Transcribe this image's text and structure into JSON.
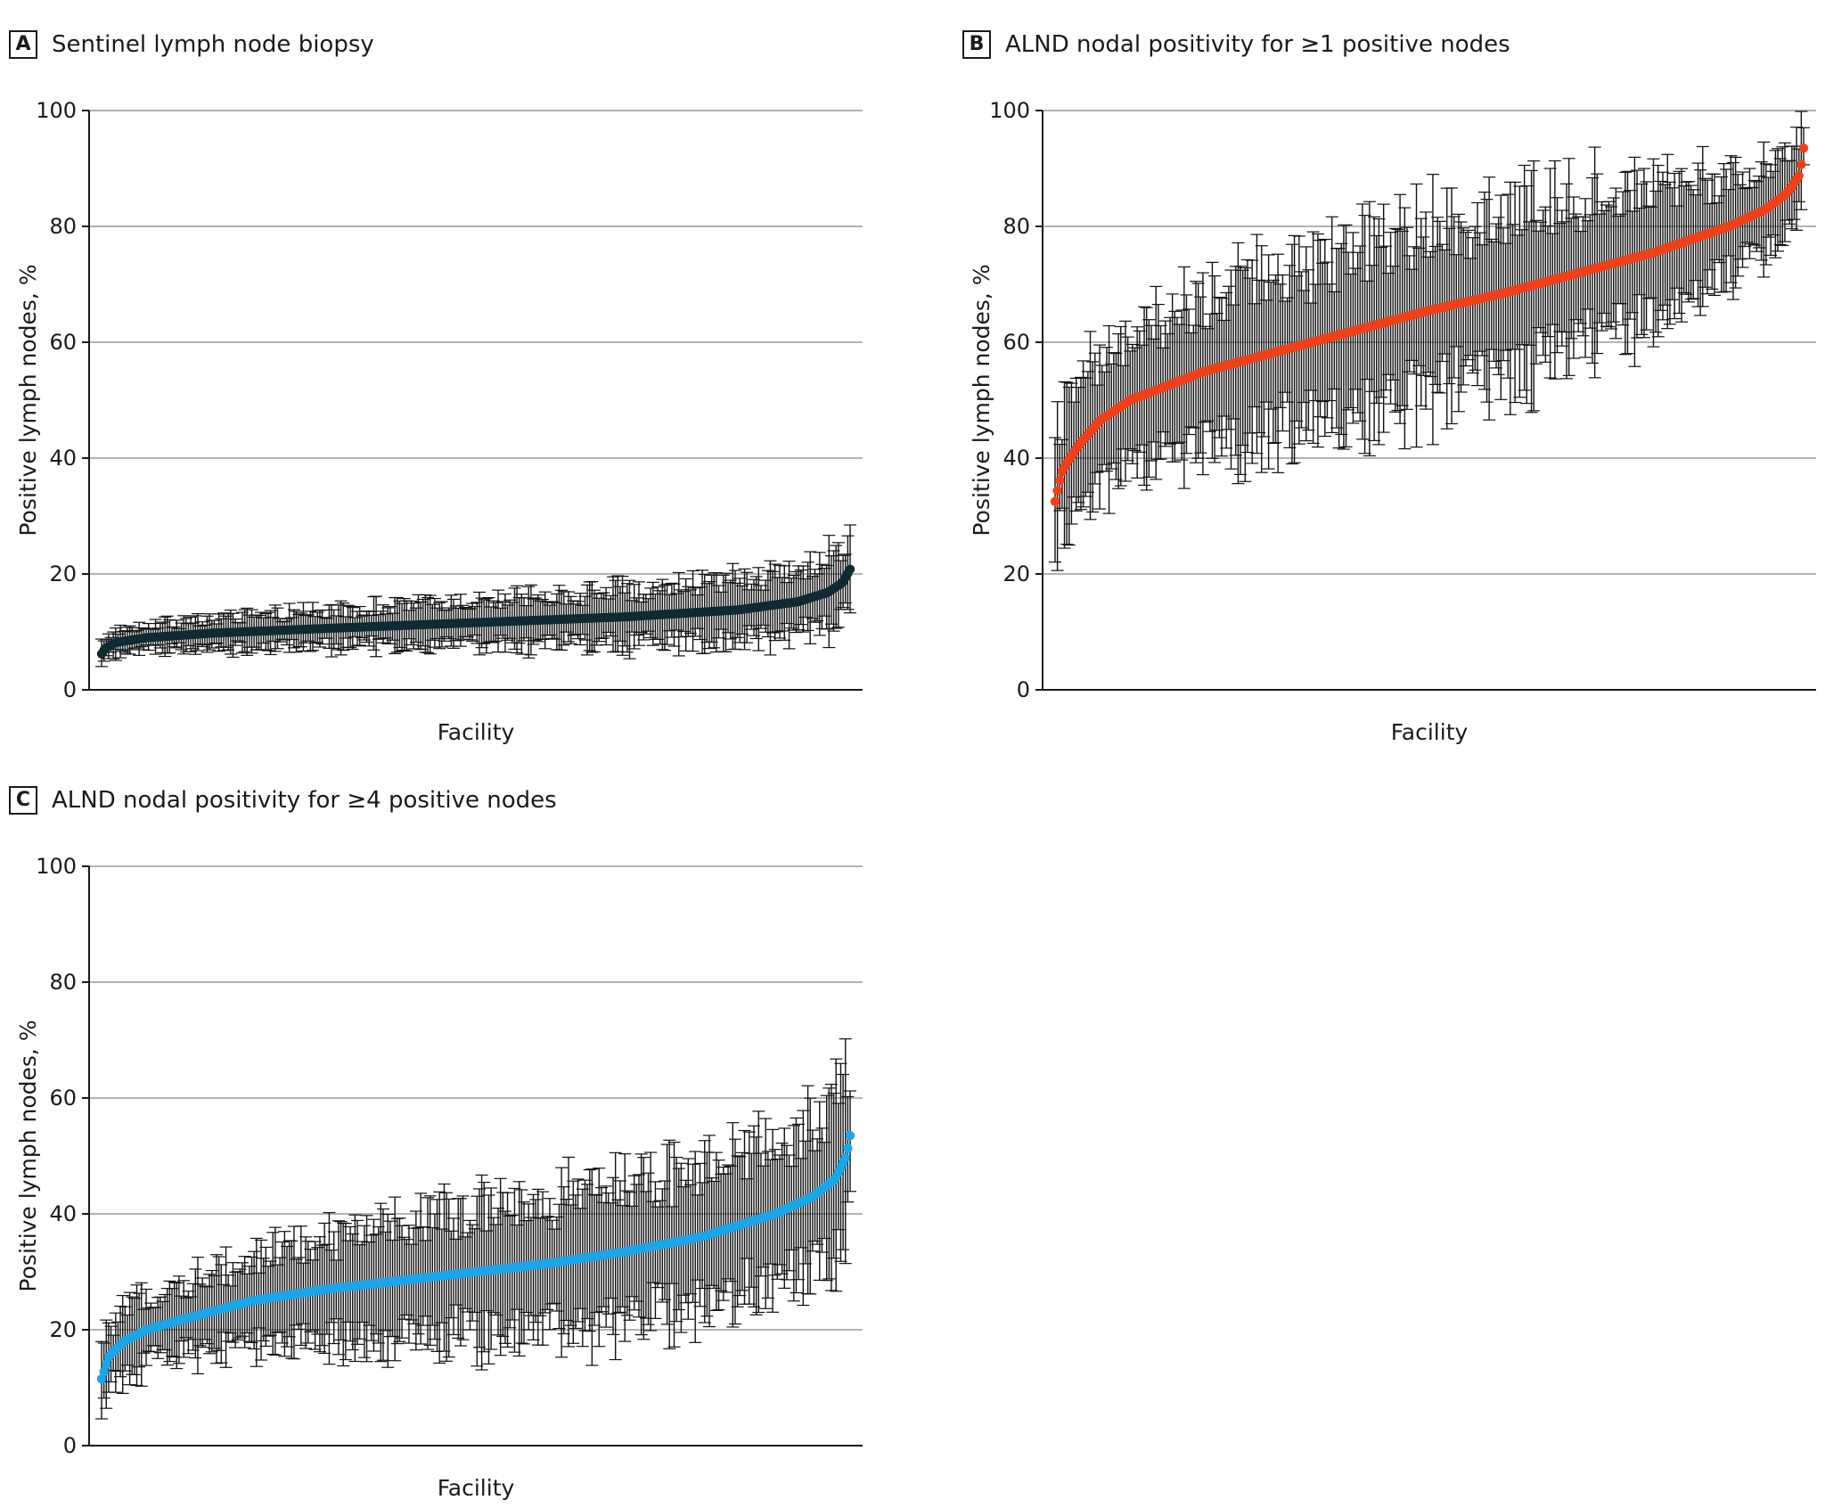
{
  "chart_data": [
    {
      "id": "a",
      "type": "scatter",
      "panel_letter": "A",
      "title": "Sentinel lymph node biopsy",
      "xlabel": "Facility",
      "ylabel": "Positive lymph nodes, %",
      "ylim": [
        0,
        100
      ],
      "yticks": [
        "0",
        "20",
        "40",
        "60",
        "80",
        "100"
      ],
      "grid": true,
      "point_color": "#0f2a33",
      "errorbar_color": "#111111",
      "n_facilities": 320,
      "value_profile": [
        [
          0.0,
          6.2
        ],
        [
          0.005,
          7.2
        ],
        [
          0.02,
          8.2
        ],
        [
          0.06,
          9.0
        ],
        [
          0.15,
          9.8
        ],
        [
          0.3,
          10.6
        ],
        [
          0.5,
          11.6
        ],
        [
          0.7,
          12.6
        ],
        [
          0.85,
          13.8
        ],
        [
          0.93,
          15.2
        ],
        [
          0.97,
          16.8
        ],
        [
          0.99,
          18.5
        ],
        [
          1.0,
          20.8
        ]
      ],
      "ci_halfwidth_profile": [
        [
          0.0,
          2.0
        ],
        [
          0.5,
          3.8
        ],
        [
          1.0,
          6.0
        ]
      ]
    },
    {
      "id": "b",
      "type": "scatter",
      "panel_letter": "B",
      "title": "ALND nodal positivity for ≥1 positive nodes",
      "xlabel": "Facility",
      "ylabel": "Positive lymph nodes, %",
      "ylim": [
        0,
        100
      ],
      "yticks": [
        "0",
        "20",
        "40",
        "60",
        "80",
        "100"
      ],
      "grid": true,
      "point_color": "#f0401a",
      "errorbar_color": "#111111",
      "n_facilities": 320,
      "value_profile": [
        [
          0.0,
          32.5
        ],
        [
          0.005,
          35.5
        ],
        [
          0.01,
          38.0
        ],
        [
          0.03,
          42.0
        ],
        [
          0.06,
          46.5
        ],
        [
          0.1,
          50.0
        ],
        [
          0.2,
          55.0
        ],
        [
          0.3,
          58.5
        ],
        [
          0.4,
          62.0
        ],
        [
          0.5,
          65.5
        ],
        [
          0.6,
          68.5
        ],
        [
          0.7,
          72.0
        ],
        [
          0.8,
          75.5
        ],
        [
          0.9,
          80.0
        ],
        [
          0.95,
          83.0
        ],
        [
          0.98,
          86.0
        ],
        [
          0.995,
          89.0
        ],
        [
          1.0,
          93.5
        ]
      ],
      "ci_halfwidth_profile": [
        [
          0.0,
          10.0
        ],
        [
          0.3,
          14.0
        ],
        [
          0.5,
          15.0
        ],
        [
          0.7,
          14.0
        ],
        [
          1.0,
          6.0
        ]
      ]
    },
    {
      "id": "c",
      "type": "scatter",
      "panel_letter": "C",
      "title": "ALND nodal positivity for ≥4 positive nodes",
      "xlabel": "Facility",
      "ylabel": "Positive lymph nodes, %",
      "ylim": [
        0,
        100
      ],
      "yticks": [
        "0",
        "20",
        "40",
        "60",
        "80",
        "100"
      ],
      "grid": true,
      "point_color": "#1aa6e8",
      "errorbar_color": "#111111",
      "n_facilities": 320,
      "value_profile": [
        [
          0.0,
          11.5
        ],
        [
          0.005,
          13.5
        ],
        [
          0.01,
          15.5
        ],
        [
          0.03,
          18.0
        ],
        [
          0.06,
          20.0
        ],
        [
          0.1,
          21.5
        ],
        [
          0.2,
          25.0
        ],
        [
          0.3,
          27.0
        ],
        [
          0.4,
          28.5
        ],
        [
          0.5,
          30.0
        ],
        [
          0.6,
          31.5
        ],
        [
          0.7,
          33.5
        ],
        [
          0.8,
          36.0
        ],
        [
          0.9,
          40.0
        ],
        [
          0.95,
          43.0
        ],
        [
          0.98,
          46.0
        ],
        [
          0.995,
          50.0
        ],
        [
          1.0,
          53.5
        ]
      ],
      "ci_halfwidth_profile": [
        [
          0.0,
          5.0
        ],
        [
          0.3,
          9.0
        ],
        [
          0.6,
          11.5
        ],
        [
          0.85,
          12.0
        ],
        [
          1.0,
          13.0
        ]
      ]
    }
  ]
}
